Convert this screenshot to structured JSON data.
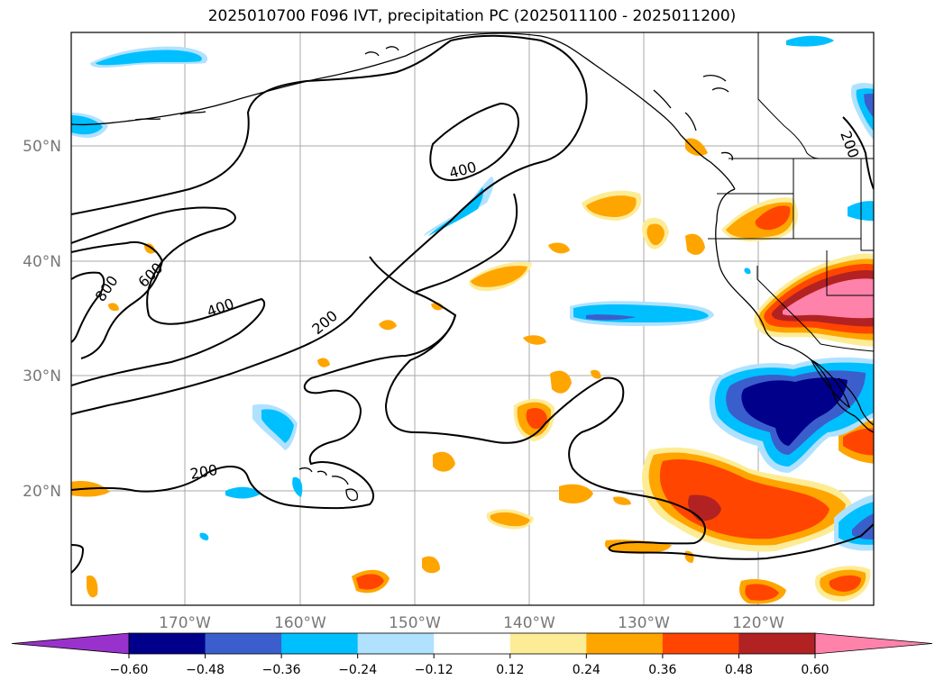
{
  "title": "2025010700 F096 IVT, precipitation PC (2025011100 - 2025011200)",
  "lat_labels": [
    "50°N",
    "40°N",
    "30°N",
    "20°N"
  ],
  "lon_labels": [
    "170°W",
    "160°W",
    "150°W",
    "140°W",
    "130°W",
    "120°W"
  ],
  "contour_labels": [
    "800",
    "600",
    "400",
    "400",
    "200",
    "200",
    "200"
  ],
  "colorbar": {
    "ticks": [
      "−0.60",
      "−0.48",
      "−0.36",
      "−0.24",
      "−0.12",
      "0.12",
      "0.24",
      "0.36",
      "0.48",
      "0.60"
    ],
    "colors": [
      "#9932cc",
      "#00008b",
      "#3a5fcd",
      "#00bfff",
      "#b0e2ff",
      "#ffffff",
      "#fdec96",
      "#ffa500",
      "#ff4500",
      "#b22222",
      "#ff82ab"
    ]
  }
}
